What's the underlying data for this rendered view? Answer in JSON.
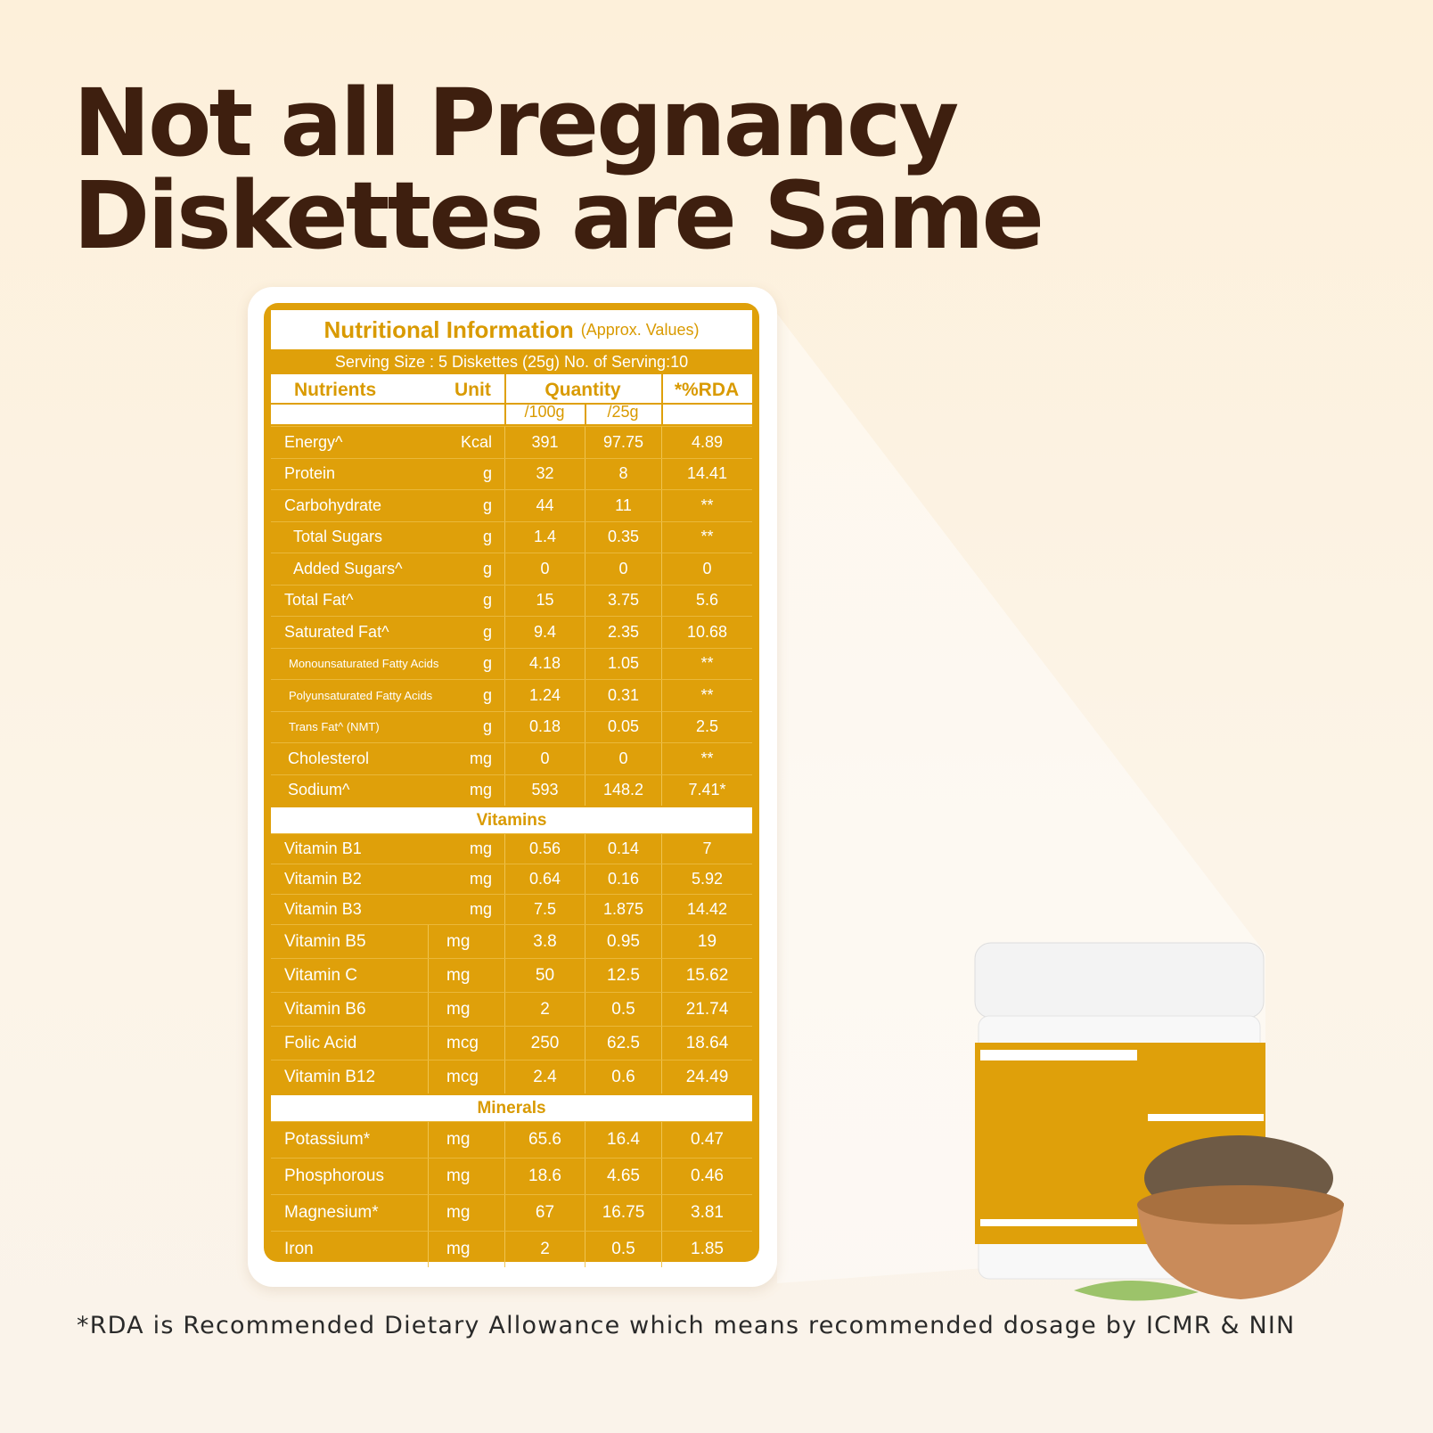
{
  "header": {
    "title": [
      "Not all Pregnancy",
      "Diskettes are Same"
    ]
  },
  "table": {
    "title": "Nutritional Information",
    "title_note": "(Approx. Values)",
    "serving": "Serving Size : 5 Diskettes (25g) No. of Serving:10",
    "columns": [
      "Nutrients",
      "Unit",
      "Quantity",
      "*%RDA"
    ],
    "subcolumns": [
      "/100g",
      "/25g"
    ],
    "groups": [
      {
        "rows": [
          [
            "Energy^",
            "Kcal",
            "391",
            "97.75",
            "4.89"
          ],
          [
            "Protein",
            "g",
            "32",
            "8",
            "14.41"
          ],
          [
            "Carbohydrate",
            "g",
            "44",
            "11",
            "**"
          ],
          [
            "Total Sugars",
            "g",
            "1.4",
            "0.35",
            "**"
          ],
          [
            "Added Sugars^",
            "g",
            "0",
            "0",
            "0"
          ],
          [
            "Total Fat^",
            "g",
            "15",
            "3.75",
            "5.6"
          ],
          [
            "Saturated Fat^",
            "g",
            "9.4",
            "2.35",
            "10.68"
          ],
          [
            "Monounsaturated Fatty Acids",
            "g",
            "4.18",
            "1.05",
            "**"
          ],
          [
            "Polyunsaturated Fatty Acids",
            "g",
            "1.24",
            "0.31",
            "**"
          ],
          [
            "Trans Fat^ (NMT)",
            "g",
            "0.18",
            "0.05",
            "2.5"
          ],
          [
            "Cholesterol",
            "mg",
            "0",
            "0",
            "**"
          ],
          [
            "Sodium^",
            "mg",
            "593",
            "148.2",
            "7.41*"
          ]
        ]
      },
      {
        "heading": "Vitamins",
        "rows": [
          [
            "Vitamin B1",
            "mg",
            "0.56",
            "0.14",
            "7"
          ],
          [
            "Vitamin B2",
            "mg",
            "0.64",
            "0.16",
            "5.92"
          ],
          [
            "Vitamin B3",
            "mg",
            "7.5",
            "1.875",
            "14.42"
          ],
          [
            "Vitamin B5",
            "mg",
            "3.8",
            "0.95",
            "19"
          ],
          [
            "Vitamin C",
            "mg",
            "50",
            "12.5",
            "15.62"
          ],
          [
            "Vitamin B6",
            "mg",
            "2",
            "0.5",
            "21.74"
          ],
          [
            "Folic Acid",
            "mcg",
            "250",
            "62.5",
            "18.64"
          ],
          [
            "Vitamin B12",
            "mcg",
            "2.4",
            "0.6",
            "24.49"
          ]
        ]
      },
      {
        "heading": "Minerals",
        "rows": [
          [
            "Potassium*",
            "mg",
            "65.6",
            "16.4",
            "0.47"
          ],
          [
            "Phosphorous",
            "mg",
            "18.6",
            "4.65",
            "0.46"
          ],
          [
            "Magnesium*",
            "mg",
            "67",
            "16.75",
            "3.81"
          ],
          [
            "Iron",
            "mg",
            "2",
            "0.5",
            "1.85"
          ]
        ]
      }
    ]
  },
  "footnote": "*RDA is Recommended Dietary Allowance which means recommended dosage by ICMR & NIN"
}
